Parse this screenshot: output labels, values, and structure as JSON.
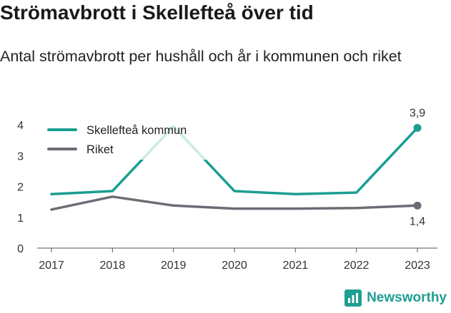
{
  "title": "Strömavbrott i Skellefteå över tid",
  "subtitle": "Antal strömavbrott per hushåll och år i kommunen och riket",
  "brand": {
    "name": "Newsworthy",
    "icon": "newsworthy-logo-icon",
    "color": "#1f9e92"
  },
  "chart_data": {
    "type": "line",
    "title": "Strömavbrott i Skellefteå över tid",
    "subtitle": "Antal strömavbrott per hushåll och år i kommunen och riket",
    "xlabel": "",
    "ylabel": "",
    "x": [
      "2017",
      "2018",
      "2019",
      "2020",
      "2021",
      "2022",
      "2023"
    ],
    "ylim": [
      0,
      4
    ],
    "yticks": [
      "0",
      "1",
      "2",
      "3",
      "4"
    ],
    "grid": false,
    "legend_position": "top-left",
    "series": [
      {
        "name": "Skellefteå kommun",
        "color": "#1a9e91",
        "values": [
          1.75,
          1.85,
          3.95,
          1.85,
          1.75,
          1.8,
          3.9
        ],
        "end_label": "3,9"
      },
      {
        "name": "Riket",
        "color": "#6b6d75",
        "values": [
          1.25,
          1.67,
          1.38,
          1.28,
          1.28,
          1.3,
          1.38
        ],
        "end_label": "1,4"
      }
    ]
  }
}
